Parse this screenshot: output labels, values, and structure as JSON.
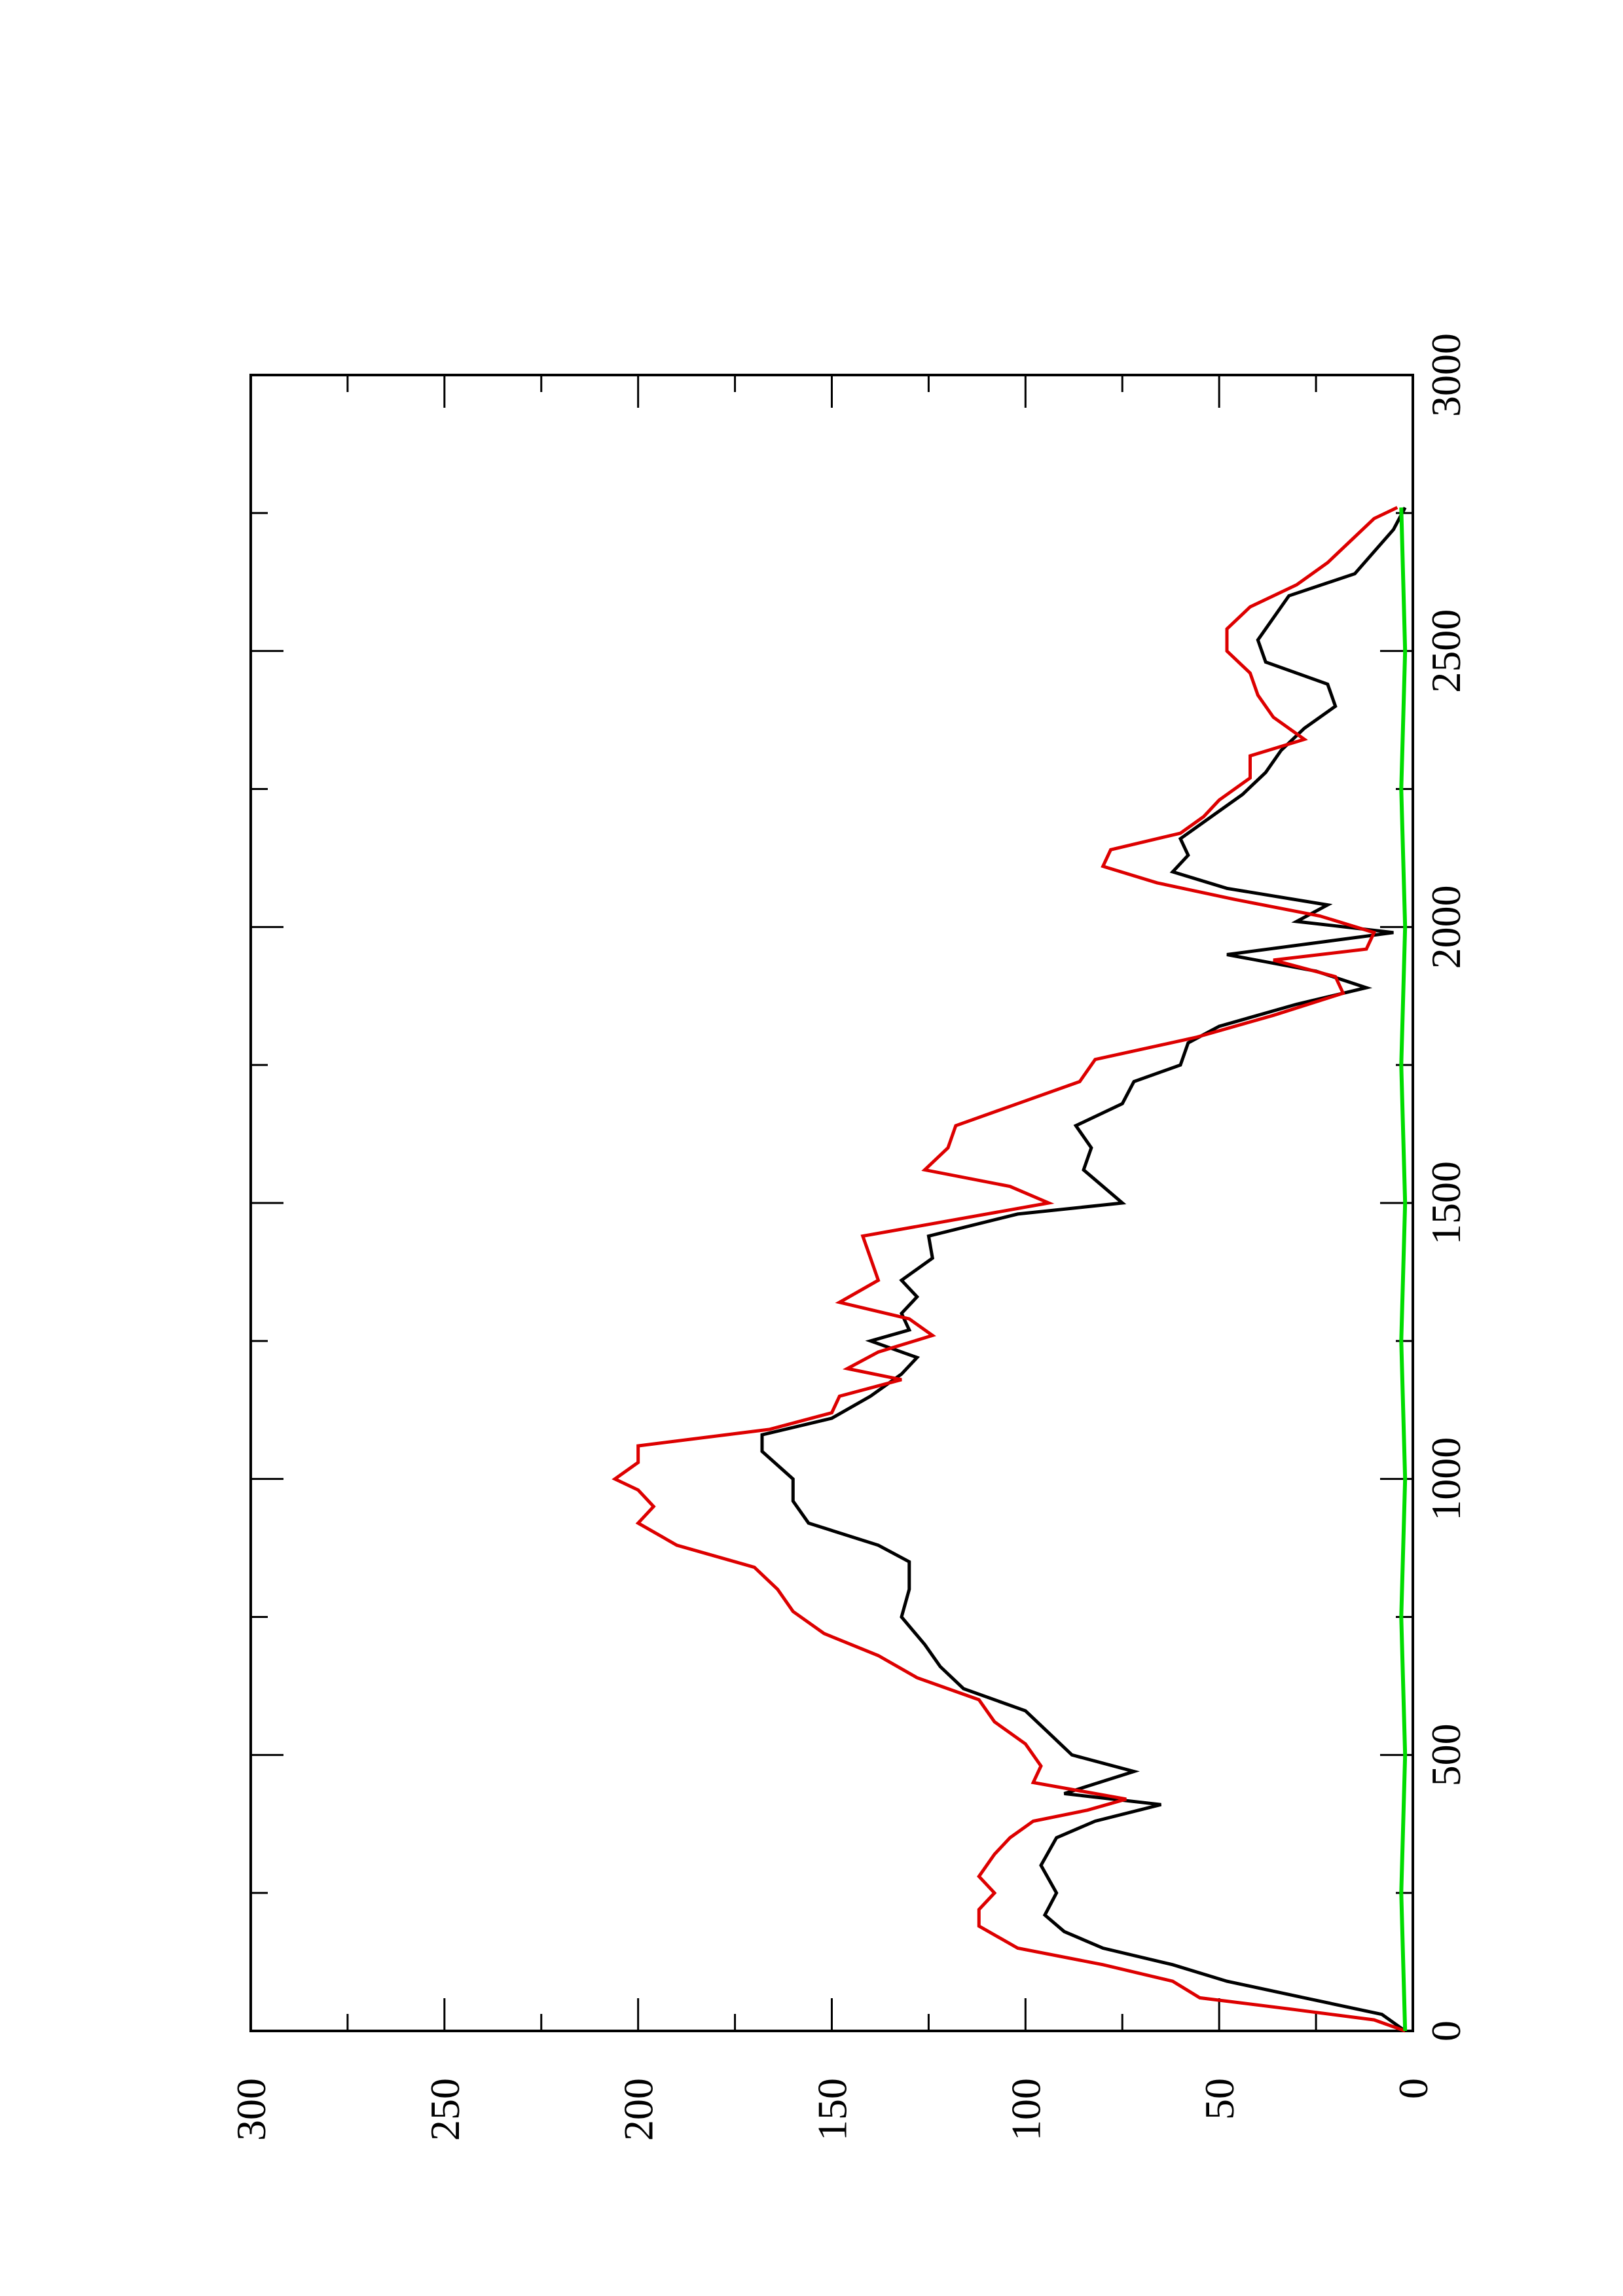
{
  "chart_data": {
    "type": "line",
    "orientation": "rotated-90-counterclockwise",
    "title": "",
    "xlabel": "",
    "ylabel": "",
    "xlim": [
      0,
      3000
    ],
    "ylim": [
      0,
      300
    ],
    "xticks": [
      "0",
      "500",
      "1000",
      "1500",
      "2000",
      "2500",
      "3000"
    ],
    "yticks": [
      "0",
      "50",
      "100",
      "150",
      "200",
      "250",
      "300"
    ],
    "grid": false,
    "legend": "none",
    "series": [
      {
        "color": "#000000",
        "x": [
          0,
          30,
          60,
          90,
          120,
          150,
          180,
          210,
          250,
          300,
          350,
          380,
          410,
          430,
          470,
          500,
          540,
          580,
          620,
          660,
          700,
          750,
          800,
          850,
          880,
          920,
          960,
          1000,
          1050,
          1080,
          1110,
          1150,
          1190,
          1220,
          1250,
          1270,
          1300,
          1330,
          1360,
          1400,
          1440,
          1480,
          1500,
          1530,
          1560,
          1600,
          1640,
          1680,
          1720,
          1750,
          1790,
          1820,
          1860,
          1890,
          1920,
          1950,
          1990,
          2010,
          2040,
          2070,
          2100,
          2130,
          2160,
          2200,
          2240,
          2280,
          2320,
          2360,
          2400,
          2440,
          2480,
          2520,
          2560,
          2600,
          2640,
          2680,
          2720,
          2760
        ],
        "values": [
          2,
          8,
          28,
          48,
          62,
          80,
          90,
          95,
          92,
          96,
          92,
          82,
          65,
          90,
          72,
          88,
          94,
          100,
          116,
          122,
          126,
          132,
          130,
          130,
          138,
          156,
          160,
          160,
          168,
          168,
          150,
          140,
          132,
          128,
          140,
          130,
          132,
          128,
          132,
          124,
          125,
          102,
          75,
          80,
          85,
          83,
          87,
          75,
          72,
          60,
          58,
          50,
          30,
          12,
          25,
          48,
          5,
          30,
          22,
          48,
          62,
          58,
          60,
          52,
          44,
          38,
          34,
          28,
          20,
          22,
          38,
          40,
          36,
          32,
          15,
          10,
          5,
          2
        ]
      },
      {
        "color": "#dd0000",
        "x": [
          0,
          20,
          40,
          60,
          90,
          120,
          150,
          190,
          220,
          250,
          280,
          320,
          350,
          380,
          400,
          420,
          450,
          480,
          520,
          560,
          600,
          640,
          680,
          720,
          760,
          800,
          840,
          880,
          920,
          950,
          980,
          1000,
          1030,
          1060,
          1090,
          1120,
          1150,
          1180,
          1200,
          1230,
          1260,
          1290,
          1320,
          1360,
          1400,
          1440,
          1470,
          1500,
          1530,
          1560,
          1600,
          1640,
          1680,
          1720,
          1760,
          1800,
          1840,
          1880,
          1910,
          1940,
          1960,
          1990,
          2020,
          2050,
          2080,
          2110,
          2140,
          2170,
          2200,
          2230,
          2270,
          2310,
          2340,
          2380,
          2420,
          2460,
          2500,
          2540,
          2580,
          2620,
          2660,
          2700,
          2740,
          2760
        ],
        "values": [
          2,
          10,
          32,
          55,
          62,
          80,
          102,
          112,
          112,
          108,
          112,
          108,
          104,
          98,
          84,
          74,
          98,
          96,
          100,
          108,
          112,
          128,
          138,
          152,
          160,
          164,
          170,
          190,
          200,
          196,
          200,
          206,
          200,
          200,
          166,
          150,
          148,
          132,
          146,
          138,
          124,
          130,
          148,
          138,
          140,
          142,
          118,
          94,
          104,
          126,
          120,
          118,
          102,
          86,
          82,
          56,
          36,
          18,
          20,
          36,
          12,
          10,
          24,
          46,
          66,
          80,
          78,
          60,
          54,
          50,
          42,
          42,
          28,
          36,
          40,
          42,
          48,
          48,
          42,
          30,
          22,
          16,
          10,
          4
        ]
      },
      {
        "color": "#00dd00",
        "x": [
          0,
          250,
          500,
          750,
          1000,
          1250,
          1500,
          1750,
          2000,
          2250,
          2500,
          2760
        ],
        "values": [
          2,
          3,
          2,
          3,
          2,
          3,
          2,
          3,
          2,
          3,
          2,
          3
        ]
      }
    ]
  }
}
